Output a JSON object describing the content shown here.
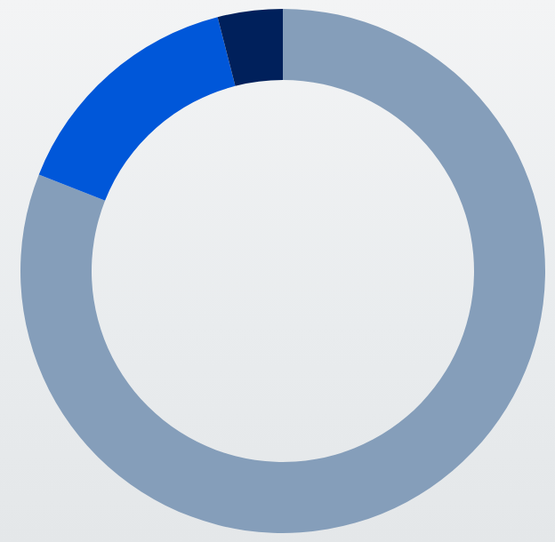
{
  "chart_data": {
    "type": "donut",
    "values": [
      81,
      15,
      4
    ],
    "colors": [
      "#859eba",
      "#0057d9",
      "#00205b"
    ]
  }
}
